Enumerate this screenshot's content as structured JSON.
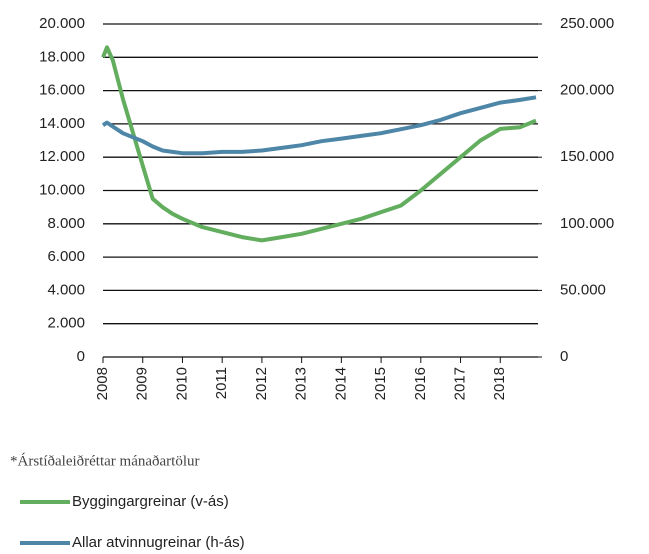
{
  "chart_data": {
    "type": "line",
    "x": [
      2008,
      2008.1,
      2008.25,
      2008.5,
      2008.75,
      2009,
      2009.25,
      2009.5,
      2009.75,
      2010,
      2010.5,
      2011,
      2011.5,
      2012,
      2012.5,
      2013,
      2013.5,
      2014,
      2014.5,
      2015,
      2015.5,
      2016,
      2016.5,
      2017,
      2017.5,
      2018,
      2018.5,
      2018.9
    ],
    "series": [
      {
        "name": "Byggingargreinar (v-ás)",
        "color": "#62ad5e",
        "values": [
          18000,
          18600,
          17800,
          15500,
          13500,
          11500,
          9500,
          9000,
          8600,
          8300,
          7800,
          7500,
          7200,
          7000,
          7200,
          7400,
          7700,
          8000,
          8300,
          8700,
          9100,
          10000,
          11000,
          12000,
          13000,
          13700,
          13800,
          14200
        ]
      },
      {
        "name": "Allar atvinnugreinar (h-ás)",
        "color": "#4e86a8",
        "axis": "y2",
        "values": [
          174000,
          176000,
          173000,
          168000,
          165000,
          162000,
          158000,
          155000,
          154000,
          153000,
          153000,
          154000,
          154000,
          155000,
          157000,
          159000,
          162000,
          164000,
          166000,
          168000,
          171000,
          174000,
          178000,
          183000,
          187000,
          191000,
          193000,
          195000
        ]
      }
    ],
    "xlim": [
      2008,
      2019
    ],
    "xticks": [
      2008,
      2009,
      2010,
      2011,
      2012,
      2013,
      2014,
      2015,
      2016,
      2017,
      2018
    ],
    "ylim": [
      0,
      20000
    ],
    "yticks": [
      0,
      {
        "value": 2000,
        "label": "2.000"
      },
      {
        "value": 4000,
        "label": "4.000"
      },
      {
        "value": 6000,
        "label": "6.000"
      },
      {
        "value": 8000,
        "label": "8.000"
      },
      {
        "value": 10000,
        "label": "10.000"
      },
      {
        "value": 12000,
        "label": "12.000"
      },
      {
        "value": 14000,
        "label": "14.000"
      },
      {
        "value": 16000,
        "label": "16.000"
      },
      {
        "value": 18000,
        "label": "18.000"
      },
      {
        "value": 20000,
        "label": "20.000"
      }
    ],
    "y2lim": [
      0,
      250000
    ],
    "y2ticks": [
      0,
      {
        "value": 50000,
        "label": "50.000"
      },
      {
        "value": 100000,
        "label": "100.000"
      },
      {
        "value": 150000,
        "label": "150.000"
      },
      {
        "value": 200000,
        "label": "200.000"
      },
      {
        "value": 250000,
        "label": "250.000"
      }
    ],
    "grid": true,
    "footnote": "*Árstíðaleiðréttar mánaðartölur"
  }
}
